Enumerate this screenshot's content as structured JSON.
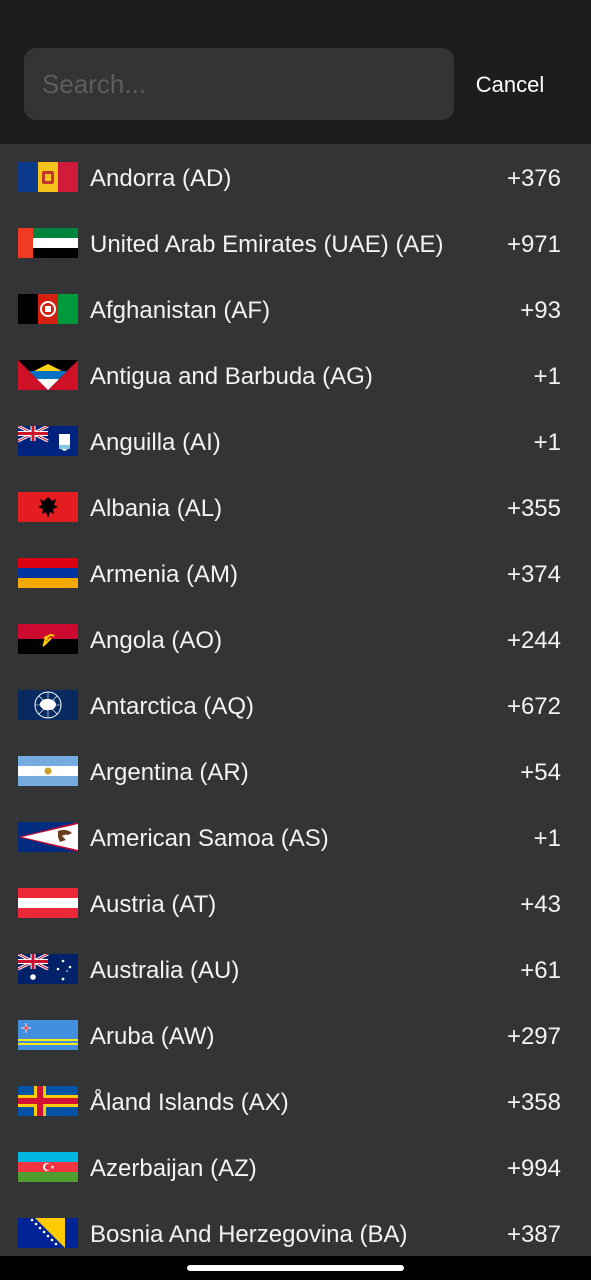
{
  "search": {
    "placeholder": "Search...",
    "value": "",
    "cancel_label": "Cancel"
  },
  "countries": [
    {
      "name": "Andorra (AD)",
      "code": "+376",
      "flag": "flag-andorra-icon"
    },
    {
      "name": "United Arab Emirates (UAE) (AE)",
      "code": "+971",
      "flag": "flag-uae-icon"
    },
    {
      "name": "Afghanistan (AF)",
      "code": "+93",
      "flag": "flag-afghanistan-icon"
    },
    {
      "name": "Antigua and Barbuda (AG)",
      "code": "+1",
      "flag": "flag-antigua-icon"
    },
    {
      "name": "Anguilla (AI)",
      "code": "+1",
      "flag": "flag-anguilla-icon"
    },
    {
      "name": "Albania (AL)",
      "code": "+355",
      "flag": "flag-albania-icon"
    },
    {
      "name": "Armenia (AM)",
      "code": "+374",
      "flag": "flag-armenia-icon"
    },
    {
      "name": "Angola (AO)",
      "code": "+244",
      "flag": "flag-angola-icon"
    },
    {
      "name": "Antarctica (AQ)",
      "code": "+672",
      "flag": "flag-antarctica-icon"
    },
    {
      "name": "Argentina (AR)",
      "code": "+54",
      "flag": "flag-argentina-icon"
    },
    {
      "name": "American Samoa (AS)",
      "code": "+1",
      "flag": "flag-american-samoa-icon"
    },
    {
      "name": "Austria (AT)",
      "code": "+43",
      "flag": "flag-austria-icon"
    },
    {
      "name": "Australia (AU)",
      "code": "+61",
      "flag": "flag-australia-icon"
    },
    {
      "name": "Aruba (AW)",
      "code": "+297",
      "flag": "flag-aruba-icon"
    },
    {
      "name": "Åland Islands (AX)",
      "code": "+358",
      "flag": "flag-aland-icon"
    },
    {
      "name": "Azerbaijan (AZ)",
      "code": "+994",
      "flag": "flag-azerbaijan-icon"
    },
    {
      "name": "Bosnia And Herzegovina (BA)",
      "code": "+387",
      "flag": "flag-bosnia-icon"
    }
  ],
  "colors": {
    "background": "#333436",
    "header": "#1c1d1c",
    "search_field": "#333435",
    "text": "#f2f2f2"
  }
}
